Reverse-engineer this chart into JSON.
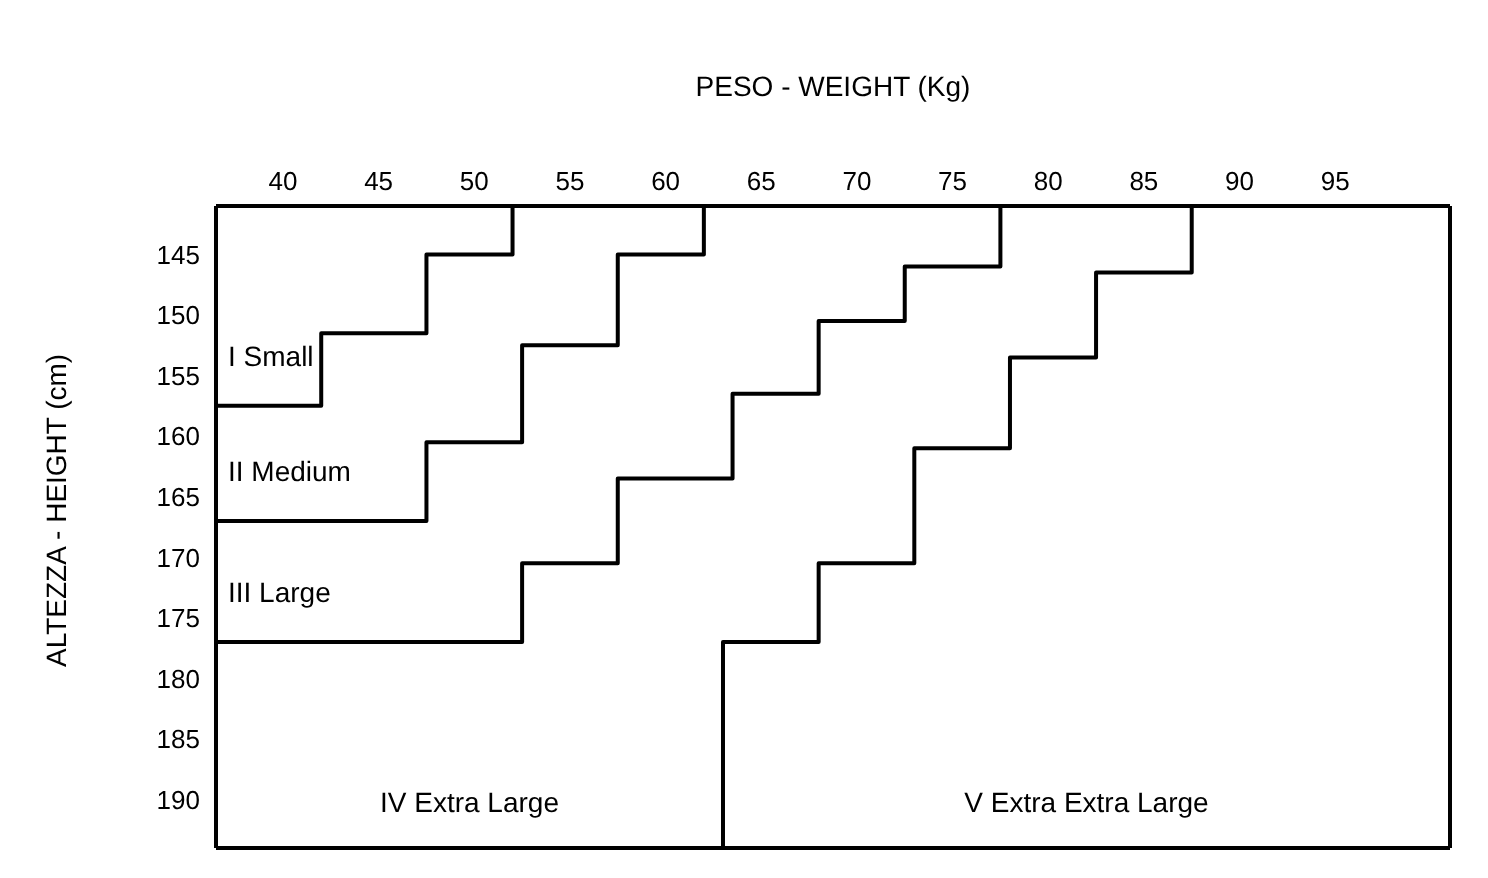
{
  "chart_data": {
    "type": "line",
    "xlabel": "PESO - WEIGHT (Kg)",
    "ylabel": "ALTEZZA - HEIGHT (cm)",
    "xlim": [
      36.5,
      101
    ],
    "xticks": [
      40,
      45,
      50,
      55,
      60,
      65,
      70,
      75,
      80,
      85,
      90,
      95
    ],
    "ylim": [
      194,
      141
    ],
    "yticks": [
      145,
      150,
      155,
      160,
      165,
      170,
      175,
      180,
      185,
      190
    ],
    "series": [
      {
        "color": "#000000",
        "x": [
          36.5,
          42,
          42,
          47.5,
          47.5,
          52,
          52
        ],
        "values": [
          157.5,
          157.5,
          151.5,
          151.5,
          145,
          145,
          141
        ]
      },
      {
        "color": "#000000",
        "x": [
          36.5,
          47.5,
          47.5,
          52.5,
          52.5,
          57.5,
          57.5,
          62,
          62
        ],
        "values": [
          167,
          167,
          160.5,
          160.5,
          152.5,
          152.5,
          145,
          145,
          141
        ]
      },
      {
        "color": "#000000",
        "x": [
          36.5,
          52.5,
          52.5,
          57.5,
          57.5,
          63.5,
          63.5,
          68,
          68,
          72.5,
          72.5,
          77.5,
          77.5
        ],
        "values": [
          177,
          177,
          170.5,
          170.5,
          163.5,
          163.5,
          156.5,
          156.5,
          150.5,
          150.5,
          146,
          146,
          141
        ]
      },
      {
        "color": "#000000",
        "x": [
          63,
          63,
          68,
          68,
          73,
          73,
          78,
          78,
          82.5,
          82.5,
          87.5,
          87.5
        ],
        "values": [
          194,
          177,
          177,
          170.5,
          170.5,
          161,
          161,
          153.5,
          153.5,
          146.5,
          146.5,
          141
        ]
      }
    ],
    "annotations": [
      "I Small",
      "II Medium",
      "III Large",
      "IV Extra Large",
      "V Extra Extra Large"
    ]
  }
}
